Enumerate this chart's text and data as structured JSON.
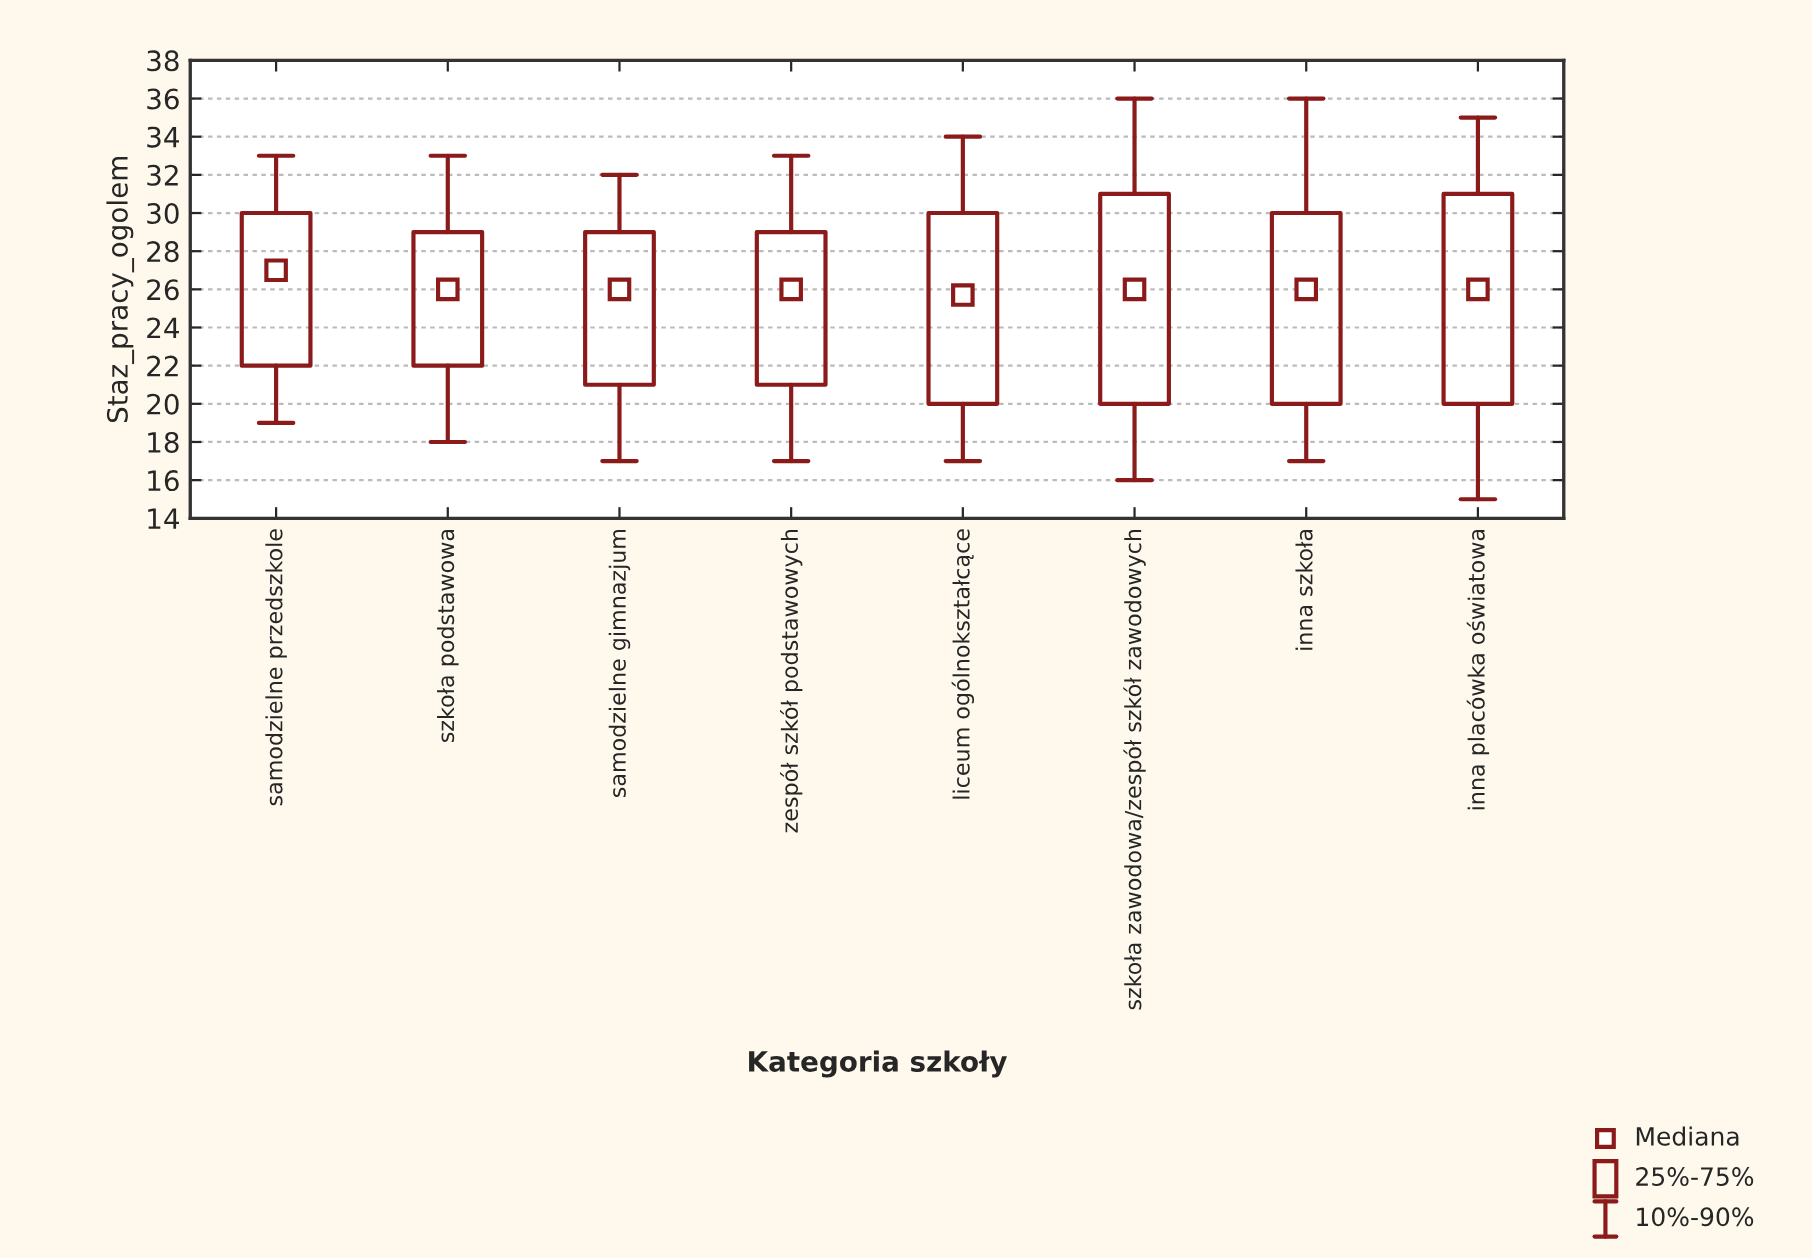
{
  "chart_data": {
    "type": "box",
    "xlabel": "Kategoria szkoły",
    "ylabel": "Staz_pracy_ogolem",
    "categories": [
      "samodzielne przedszkole",
      "szkoła podstawowa",
      "samodzielne gimnazjum",
      "zespół szkół podstawowych",
      "liceum ogólnokształcące",
      "szkoła zawodowa/zespół szkół zawodowych",
      "inna szkoła",
      "inna placówka oświatowa"
    ],
    "boxes": [
      {
        "low": 19,
        "q1": 22,
        "median": 27,
        "q3": 30,
        "high": 33
      },
      {
        "low": 18,
        "q1": 22,
        "median": 26,
        "q3": 29,
        "high": 33
      },
      {
        "low": 17,
        "q1": 21,
        "median": 26,
        "q3": 29,
        "high": 32
      },
      {
        "low": 17,
        "q1": 21,
        "median": 26,
        "q3": 29,
        "high": 33
      },
      {
        "low": 17,
        "q1": 20,
        "median": 25.7,
        "q3": 30,
        "high": 34
      },
      {
        "low": 16,
        "q1": 20,
        "median": 26,
        "q3": 31,
        "high": 36
      },
      {
        "low": 17,
        "q1": 20,
        "median": 26,
        "q3": 30,
        "high": 36
      },
      {
        "low": 15,
        "q1": 20,
        "median": 26,
        "q3": 31,
        "high": 35
      }
    ],
    "color": "#8b1a1a",
    "ylim": [
      14,
      38
    ],
    "yticks": [
      14,
      16,
      18,
      20,
      22,
      24,
      26,
      28,
      30,
      32,
      34,
      36,
      38
    ],
    "grid": "y",
    "annotations": [
      "Mediana",
      "25%-75%",
      "10%-90%"
    ]
  }
}
